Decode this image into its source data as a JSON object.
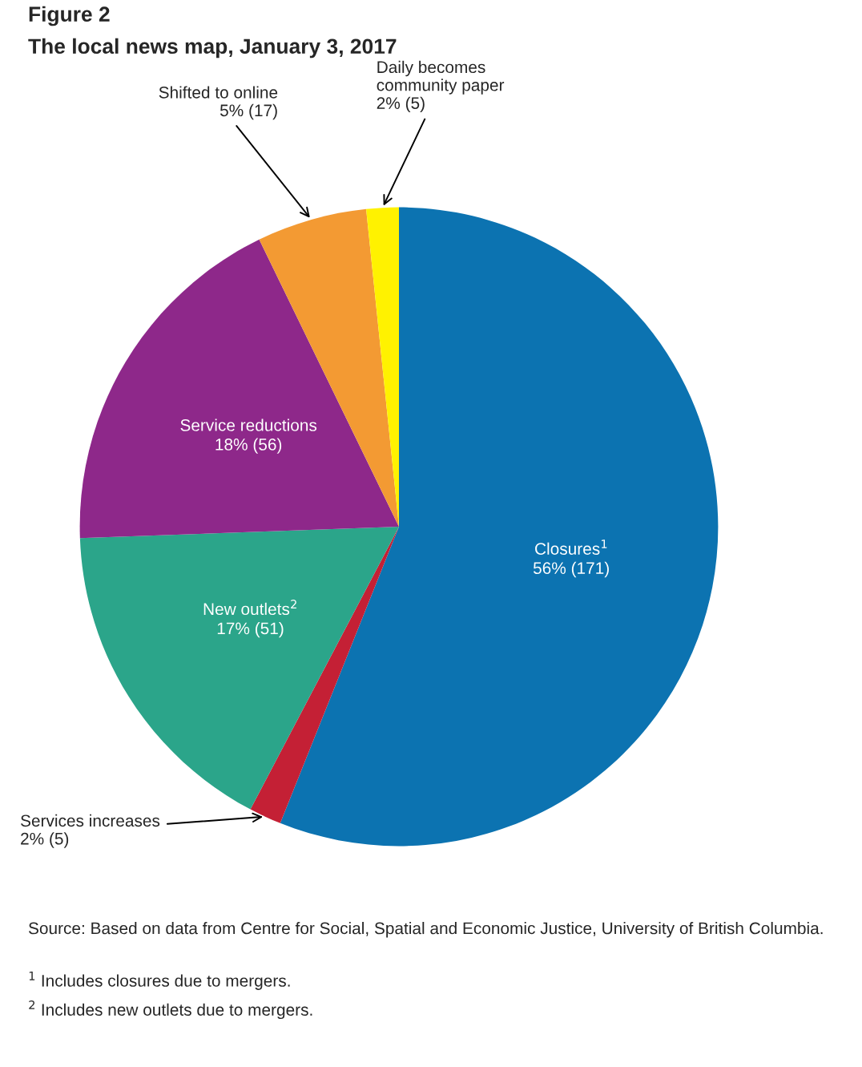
{
  "chart_data": {
    "type": "pie",
    "title": "Figure 2",
    "subtitle": "The local news map, January 3, 2017",
    "categories": [
      "Closures$^{1}$",
      "Services increases",
      "New outlets$^{2}$",
      "Service reductions",
      "Shifted to online",
      "Daily becomes\ncommunity paper"
    ],
    "values": [
      171,
      5,
      51,
      56,
      17,
      5
    ],
    "value_labels": [
      "56% (171)",
      "2% (5)",
      "17% (51)",
      "18% (56)",
      "5% (17)",
      "2% (5)"
    ],
    "colors": [
      "#0c73b1",
      "#c42035",
      "#2ba58a",
      "#8e288a",
      "#f39a33",
      "#fff200"
    ],
    "annotations": [
      "Source: Based on data from Centre for Social, Spatial and Economic Justice, University of British Columbia.",
      "$^{1}$ Includes closures due to mergers.",
      "$^{2}$ Includes new outlets due to mergers."
    ]
  }
}
